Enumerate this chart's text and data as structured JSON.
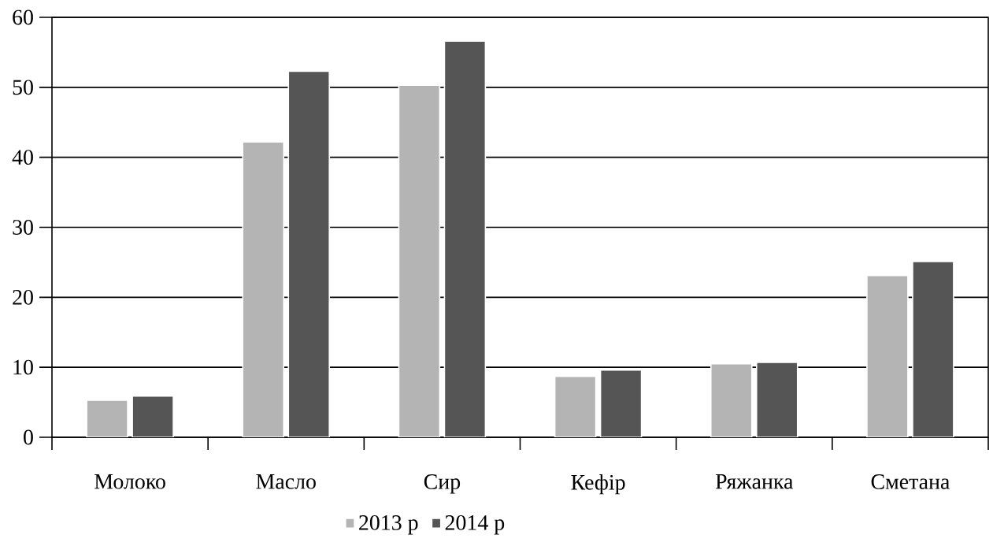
{
  "chart_data": {
    "type": "bar",
    "categories": [
      "Молоко",
      "Масло",
      "Сир",
      "Кефір",
      "Ряжанка",
      "Сметана"
    ],
    "series": [
      {
        "name": "2013 р",
        "color": "#b4b4b4",
        "values": [
          5.3,
          42.2,
          50.3,
          8.7,
          10.5,
          23.1
        ]
      },
      {
        "name": "2014 р",
        "color": "#555555",
        "values": [
          5.9,
          52.3,
          56.6,
          9.6,
          10.7,
          25.1
        ]
      }
    ],
    "ylim": [
      0,
      60
    ],
    "yticks": [
      0,
      10,
      20,
      30,
      40,
      50,
      60
    ],
    "grid": "y",
    "legend": "bottom"
  }
}
